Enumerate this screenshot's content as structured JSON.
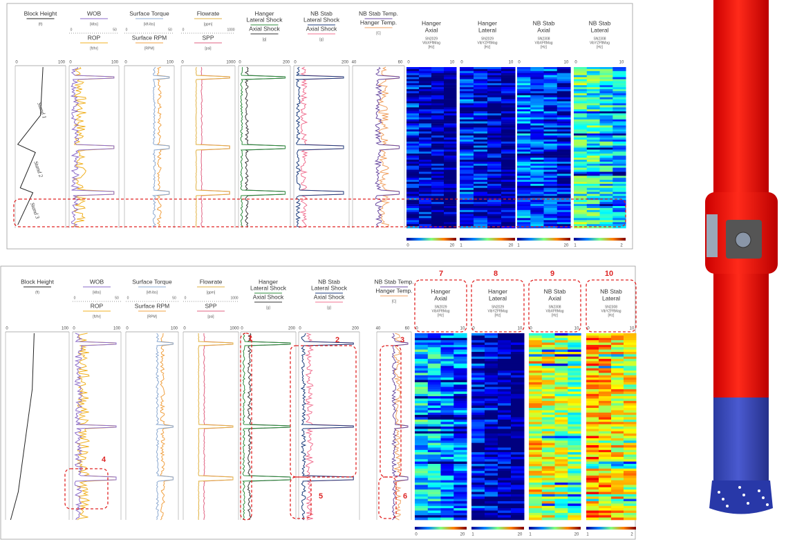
{
  "figure": {
    "panels": [
      {
        "tracks": [
          {
            "title": [
              "Block Height"
            ],
            "unit": "(ft)",
            "axis": [
              "0",
              "100"
            ]
          },
          {
            "title": [
              "WOB"
            ],
            "unit": "[klbs]",
            "scale": [
              "0",
              "50"
            ],
            "title2": "ROP",
            "unit2": "[ft/hr]",
            "axis": [
              "0",
              "100"
            ]
          },
          {
            "title": [
              "Surface Torque"
            ],
            "unit": "[kft-lbs]",
            "scale": [
              "0",
              "50"
            ],
            "title2": "Surface RPM",
            "unit2": "[RPM]",
            "axis": [
              "0",
              "100"
            ]
          },
          {
            "title": [
              "Flowrate"
            ],
            "unit": "[gpm]",
            "scale": [
              "0",
              "1000"
            ],
            "title2": "SPP",
            "unit2": "[psi]",
            "axis": [
              "0",
              "1000"
            ]
          },
          {
            "title": [
              "Hanger",
              "Lateral Shock"
            ],
            "title2": "Axial Shock",
            "unit2": "[g]",
            "axis": [
              "0",
              "200"
            ]
          },
          {
            "title": [
              "NB Stab",
              "Lateral Shock"
            ],
            "title2": "Axial Shock",
            "unit2": "[g]",
            "axis": [
              "0",
              "200"
            ]
          },
          {
            "title": [
              "NB Stab Temp."
            ],
            "title2": "Hanger Temp.",
            "unit2": "[C]",
            "axis": [
              "40",
              "60"
            ]
          }
        ],
        "spectrograms": [
          {
            "title": [
              "Hanger",
              "Axial"
            ],
            "subtitle": [
              "SN2029",
              "VibXFftMag",
              "[Hz]"
            ],
            "axis": [
              "0",
              "10"
            ],
            "colorbar": [
              "0",
              "20"
            ]
          },
          {
            "title": [
              "Hanger",
              "Lateral"
            ],
            "subtitle": [
              "SN2029",
              "VibYZFftMag",
              "[Hz]"
            ],
            "axis": [
              "0",
              "10"
            ],
            "colorbar": [
              "1",
              "20"
            ]
          },
          {
            "title": [
              "NB Stab",
              "Axial"
            ],
            "subtitle": [
              "SN2308",
              "VibXFftMag",
              "[Hz]"
            ],
            "axis": [
              "0",
              "10"
            ],
            "colorbar": [
              "1",
              "20"
            ]
          },
          {
            "title": [
              "NB Stab",
              "Lateral"
            ],
            "subtitle": [
              "SN2308",
              "VibYZFftMag",
              "[Hz]"
            ],
            "axis": [
              "0",
              "10"
            ],
            "colorbar": [
              "1",
              "2"
            ]
          }
        ],
        "annotations": [
          "Stand 1",
          "Stand 2",
          "Stand 3"
        ]
      },
      {
        "tracks": [
          {
            "title": [
              "Block Height"
            ],
            "unit": "(ft)",
            "axis": [
              "0",
              "100"
            ]
          },
          {
            "title": [
              "WOB"
            ],
            "unit": "[klbs]",
            "scale": [
              "0",
              "50"
            ],
            "title2": "ROP",
            "unit2": "[ft/hr]",
            "axis": [
              "0",
              "100"
            ]
          },
          {
            "title": [
              "Surface Torque"
            ],
            "unit": "[kft-lbs]",
            "scale": [
              "0",
              "50"
            ],
            "title2": "Surface RPM",
            "unit2": "[RPM]",
            "axis": [
              "0",
              "100"
            ]
          },
          {
            "title": [
              "Flowrate"
            ],
            "unit": "[gpm]",
            "scale": [
              "0",
              "1000"
            ],
            "title2": "SPP",
            "unit2": "[psi]",
            "axis": [
              "0",
              "1000"
            ]
          },
          {
            "title": [
              "Hanger",
              "Lateral Shock"
            ],
            "title2": "Axial Shock",
            "unit2": "[g]",
            "axis": [
              "0",
              "200"
            ]
          },
          {
            "title": [
              "NB Stab",
              "Lateral Shock"
            ],
            "title2": "Axial Shock",
            "unit2": "[g]",
            "axis": [
              "0",
              "200"
            ]
          },
          {
            "title": [
              "NB Stab Temp."
            ],
            "title2": "Hanger Temp.",
            "unit2": "[C]",
            "axis": [
              "40",
              "60"
            ]
          }
        ],
        "spectrograms": [
          {
            "title": [
              "Hanger",
              "Axial"
            ],
            "subtitle": [
              "SN2029",
              "VibXFftMag",
              "[Hz]"
            ],
            "axis": [
              "0",
              "10"
            ],
            "colorbar": [
              "0",
              "20"
            ]
          },
          {
            "title": [
              "Hanger",
              "Lateral"
            ],
            "subtitle": [
              "SN2029",
              "VibYZFftMag",
              "[Hz]"
            ],
            "axis": [
              "0",
              "10"
            ],
            "colorbar": [
              "1",
              "20"
            ]
          },
          {
            "title": [
              "NB Stab",
              "Axial"
            ],
            "subtitle": [
              "SN2308",
              "VibXFftMag",
              "[Hz]"
            ],
            "axis": [
              "0",
              "10"
            ],
            "colorbar": [
              "1",
              "20"
            ]
          },
          {
            "title": [
              "NB Stab",
              "Lateral"
            ],
            "subtitle": [
              "SN2308",
              "VibYZFftMag",
              "[Hz]"
            ],
            "axis": [
              "0",
              "10"
            ],
            "colorbar": [
              "1",
              "2"
            ]
          }
        ],
        "annotations": [
          "1",
          "2",
          "3",
          "4",
          "5",
          "6",
          "7",
          "8",
          "9",
          "10"
        ]
      }
    ]
  }
}
